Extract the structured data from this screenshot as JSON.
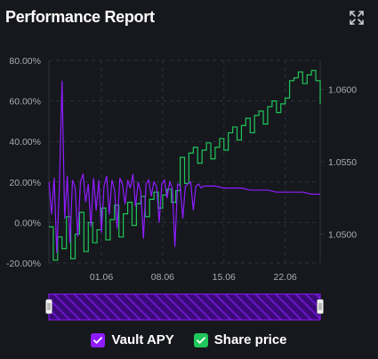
{
  "header": {
    "title": "Performance Report",
    "expand_icon": "expand-arrows-icon"
  },
  "legend": {
    "items": [
      {
        "label": "Vault APY",
        "color": "#8f1cff",
        "checked": true
      },
      {
        "label": "Share price",
        "color": "#1fc65a",
        "checked": true
      }
    ]
  },
  "colors": {
    "apy": "#8f1cff",
    "price": "#1fc65a",
    "grid": "#2e323b",
    "axis_text": "#a9adb5",
    "navigator": "#6b16c9"
  },
  "chart_data": {
    "type": "line",
    "title": "Performance Report",
    "x_ticks": [
      "01.06",
      "08.06",
      "15.06",
      "22.06"
    ],
    "x_range_days": [
      "26.05",
      "26.06"
    ],
    "y_left": {
      "ticks": [
        "80.00%",
        "60.00%",
        "40.00%",
        "20.00%",
        "0.00%",
        "-20.00%"
      ],
      "range": [
        -20,
        80
      ]
    },
    "y_right": {
      "ticks": [
        "1.0600",
        "1.0550",
        "1.0500"
      ],
      "range": [
        1.048,
        1.062
      ]
    },
    "grid": true,
    "series": [
      {
        "name": "Vault APY",
        "axis": "left",
        "x": [
          0,
          0.3,
          0.6,
          0.9,
          1.2,
          1.5,
          1.8,
          2.1,
          2.4,
          2.7,
          3.0,
          3.3,
          3.6,
          3.9,
          4.2,
          4.5,
          4.8,
          5.1,
          5.4,
          5.7,
          6.0,
          6.3,
          6.6,
          6.9,
          7.2,
          7.5,
          7.8,
          8.1,
          8.4,
          8.7,
          9.0,
          9.3,
          9.6,
          9.9,
          10.2,
          10.5,
          10.8,
          11.1,
          11.4,
          11.7,
          12.0,
          12.3,
          12.6,
          12.9,
          13.2,
          13.5,
          13.8,
          14.1,
          14.4,
          14.7,
          15.0,
          15.3,
          15.6,
          15.9,
          16.2,
          16.5,
          16.8,
          17.1,
          17.4,
          17.7,
          18.0,
          19,
          20,
          21,
          22,
          23,
          24,
          25,
          26,
          27,
          28,
          29,
          30,
          31
        ],
        "values": [
          20,
          4,
          22,
          -15,
          18,
          70,
          2,
          23,
          -10,
          21,
          17,
          -7,
          20,
          24,
          10,
          19,
          -2,
          22,
          6,
          21,
          -5,
          18,
          23,
          4,
          21,
          16,
          -3,
          22,
          19,
          9,
          21,
          17,
          24,
          8,
          20,
          15,
          -8,
          19,
          21,
          13,
          20,
          18,
          0,
          19,
          21,
          12,
          20,
          17,
          -12,
          19,
          18,
          2,
          18,
          19,
          20,
          6,
          18,
          19,
          17,
          18,
          18,
          18,
          17,
          17,
          17,
          16,
          16,
          16,
          15,
          15,
          15,
          15,
          14,
          14
        ]
      },
      {
        "name": "Share price",
        "axis": "right",
        "x": [
          0,
          0.5,
          1,
          1.5,
          2,
          2.5,
          3,
          3.5,
          4,
          4.5,
          5,
          5.5,
          6,
          6.5,
          7,
          7.5,
          8,
          8.5,
          9,
          9.5,
          10,
          10.5,
          11,
          11.5,
          12,
          12.5,
          13,
          13.5,
          14,
          14.5,
          15,
          15.5,
          16,
          16.5,
          17,
          17.5,
          18,
          18.5,
          19,
          19.5,
          20,
          20.5,
          21,
          21.5,
          22,
          22.5,
          23,
          23.5,
          24,
          24.5,
          25,
          25.5,
          26,
          26.5,
          27,
          27.5,
          28,
          28.5,
          29,
          29.5,
          30,
          30.5,
          31
        ],
        "values": [
          1.0505,
          1.0482,
          1.0498,
          1.049,
          1.0512,
          1.0483,
          1.05,
          1.0515,
          1.0488,
          1.0508,
          1.0494,
          1.0503,
          1.0518,
          1.0496,
          1.051,
          1.052,
          1.0498,
          1.0514,
          1.0522,
          1.0506,
          1.0521,
          1.0526,
          1.0512,
          1.0524,
          1.0529,
          1.0518,
          1.0527,
          1.0531,
          1.0522,
          1.053,
          1.0553,
          1.0535,
          1.0556,
          1.056,
          1.0549,
          1.0558,
          1.0563,
          1.0552,
          1.056,
          1.0566,
          1.0558,
          1.057,
          1.0574,
          1.0565,
          1.0575,
          1.058,
          1.057,
          1.0582,
          1.0585,
          1.0576,
          1.0588,
          1.0592,
          1.0584,
          1.059,
          1.0594,
          1.0606,
          1.0608,
          1.0612,
          1.0604,
          1.061,
          1.0613,
          1.0606,
          1.059
        ]
      }
    ]
  }
}
